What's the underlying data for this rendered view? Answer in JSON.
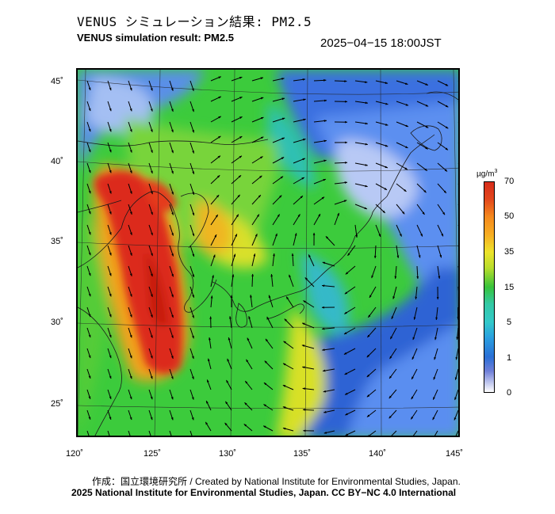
{
  "header": {
    "title_jp": "VENUS シミュレーション結果: PM2.5",
    "title_en": "VENUS simulation result: PM2.5",
    "timestamp": "2025−04−15 18:00JST"
  },
  "map": {
    "lon_labels": [
      "120˚",
      "125˚",
      "130˚",
      "135˚",
      "140˚",
      "145˚"
    ],
    "lat_labels": [
      "45˚",
      "40˚",
      "35˚",
      "30˚",
      "25˚"
    ],
    "region": "East Asia: Korea, Japan, East China Sea",
    "hotspot": "Yellow Sea / East China Sea high PM2.5 plume"
  },
  "colorbar": {
    "unit_base": "µg/m",
    "unit_exp": "3",
    "ticks": [
      "70",
      "50",
      "35",
      "15",
      "5",
      "1",
      "0"
    ],
    "colors": [
      "#d72d1b",
      "#f79a1d",
      "#e9e22a",
      "#38c33b",
      "#33c9c9",
      "#2a6fd6",
      "#ffffff"
    ]
  },
  "footer": {
    "credit_jp": "作成：国立環境研究所 / Created by National Institute for Environmental Studies, Japan.",
    "credit_en": "2025 National Institute for Environmental Studies, Japan. CC BY−NC 4.0 International"
  }
}
